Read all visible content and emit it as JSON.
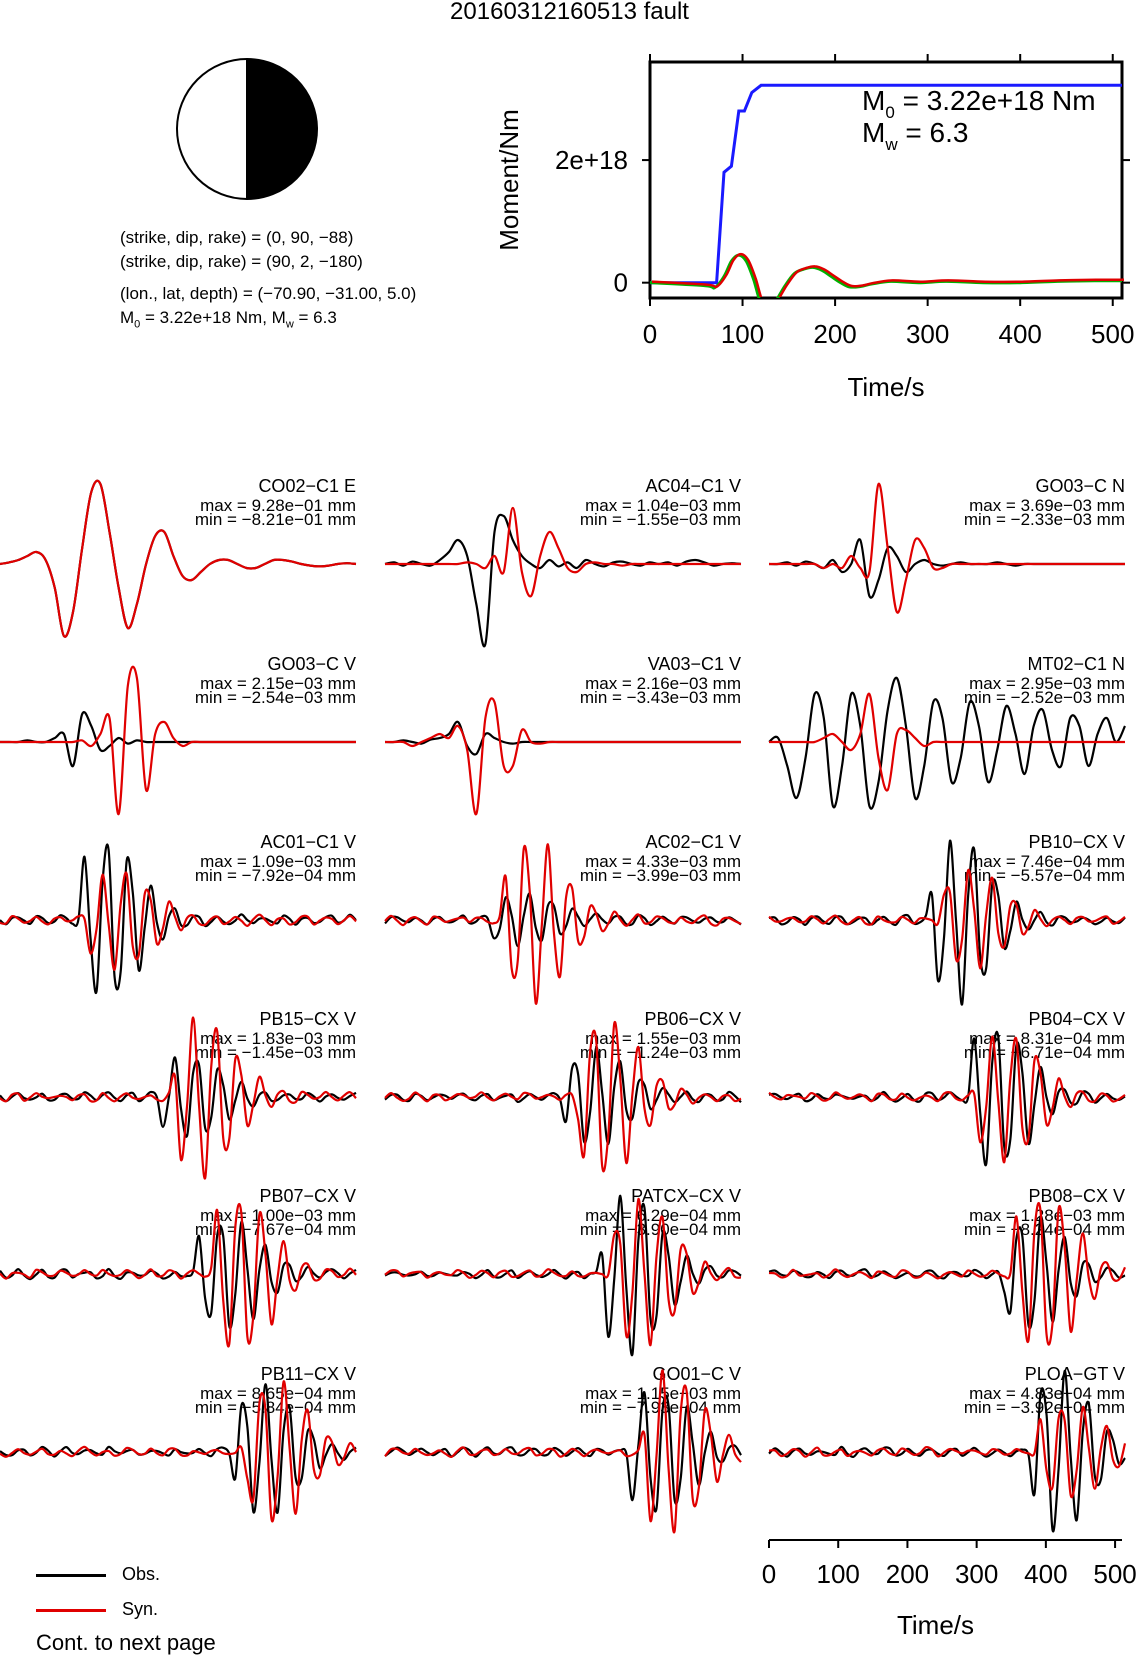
{
  "title": "20160312160513 fault",
  "mechanism": {
    "line1": "(strike, dip, rake) = (0, 90, −88)",
    "line2": "(strike, dip, rake) = (90, 2, −180)",
    "line3": "(lon., lat, depth) = (−70.90, −31.00, 5.0)",
    "line4_m0": "M",
    "line4_m0_sub": "0",
    "line4_m0_val": " = 3.22e+18 Nm, M",
    "line4_mw_sub": "w",
    "line4_mw_val": " = 6.3"
  },
  "colors": {
    "obs": "#000000",
    "syn": "#e00000",
    "moment": "#1a1aff",
    "green": "#00b000"
  },
  "chart_data": [
    {
      "type": "line",
      "id": "moment-rate",
      "xlabel": "Time/s",
      "ylabel": "Moment/Nm",
      "xlim": [
        0,
        510
      ],
      "ylim": [
        -2.5e+17,
        3.6e+18
      ],
      "xticks": [
        "0",
        "100",
        "200",
        "300",
        "400",
        "500"
      ],
      "yticks": [
        {
          "value": 0,
          "label": "0"
        },
        {
          "value": 2e+18,
          "label": "2e+18"
        }
      ],
      "annotation_m0": {
        "sym": "M",
        "sub": "0",
        "val": " = 3.22e+18 Nm"
      },
      "annotation_mw": {
        "sym": "M",
        "sub": "w",
        "val": " = 6.3"
      },
      "series": [
        {
          "x": [
            0,
            72,
            80,
            88,
            96,
            102,
            110,
            120,
            510
          ],
          "y": [
            0,
            0,
            1.8e+18,
            1.9e+18,
            2.8e+18,
            2.8e+18,
            3.1e+18,
            3.22e+18,
            3.22e+18
          ]
        },
        {
          "x": [
            0,
            60,
            70,
            80,
            88,
            96,
            104,
            112,
            120,
            128,
            136,
            146,
            156,
            166,
            176,
            186,
            196,
            206,
            216,
            228,
            240,
            260,
            290,
            320,
            360,
            400,
            440,
            480,
            510
          ],
          "y": [
            0,
            -5e+16,
            -8e+16,
            1e+17,
            3.5e+17,
            4.5e+17,
            3.5e+17,
            5e+16,
            -3.5e+17,
            -4.5e+17,
            -3e+17,
            -5e+16,
            1.5e+17,
            2.2e+17,
            2.5e+17,
            2e+17,
            1e+17,
            0.0,
            -7e+16,
            -6e+16,
            -2e+16,
            2e+16,
            0.0,
            2e+16,
            0.0,
            0.0,
            2e+16,
            3e+16,
            3e+16
          ]
        }
      ]
    },
    {
      "type": "line",
      "id": "waveforms",
      "xlabel": "Time/s",
      "xlim": [
        0,
        510
      ],
      "xticks": [
        "0",
        "100",
        "200",
        "300",
        "400",
        "500"
      ],
      "legend": {
        "obs": "Obs.",
        "syn": "Syn."
      },
      "stations": [
        {
          "name": "CO02−C1 E",
          "max": "max = 9.28e−01 mm",
          "min": "min = −8.21e−01 mm",
          "obs": [
            0,
            0.02,
            0.05,
            0.1,
            0.15,
            0.05,
            -0.3,
            -0.9,
            -0.6,
            0.2,
            0.9,
            1.0,
            0.4,
            -0.3,
            -0.8,
            -0.5,
            0.0,
            0.35,
            0.4,
            0.1,
            -0.15,
            -0.2,
            -0.1,
            0.0,
            0.05,
            0.05,
            0.0,
            -0.05,
            -0.05,
            0.0,
            0.05,
            0.05,
            0.03,
            0.0,
            -0.02,
            -0.03,
            -0.02,
            0.0,
            0.01,
            0.0
          ],
          "syn": [
            0,
            0.02,
            0.05,
            0.1,
            0.15,
            0.05,
            -0.3,
            -0.9,
            -0.6,
            0.2,
            0.9,
            1.0,
            0.4,
            -0.3,
            -0.8,
            -0.5,
            0.0,
            0.35,
            0.4,
            0.1,
            -0.15,
            -0.2,
            -0.1,
            0.0,
            0.05,
            0.05,
            0.0,
            -0.05,
            -0.05,
            0.0,
            0.05,
            0.05,
            0.03,
            0.0,
            -0.02,
            -0.03,
            -0.02,
            0.0,
            0.01,
            0.0
          ]
        },
        {
          "name": "AC04−C1 V",
          "max": "max = 1.04e−03 mm",
          "min": "min = −1.55e−03 mm",
          "obs": [
            0,
            0.02,
            -0.02,
            0.03,
            0.0,
            -0.02,
            0.05,
            0.15,
            0.3,
            0.1,
            -0.5,
            -1.0,
            0.4,
            0.6,
            0.3,
            0.1,
            0.0,
            -0.05,
            0.05,
            -0.03,
            0.02,
            -0.05,
            0.05,
            0.0,
            -0.03,
            0.02,
            0.03,
            0.0,
            -0.02,
            0.02,
            0.0,
            0.02,
            -0.02,
            0.03,
            0.05,
            0.02,
            -0.02,
            0.0,
            0.01,
            0.0
          ],
          "syn": [
            0,
            0.0,
            0.0,
            0.0,
            0.0,
            0.0,
            0.0,
            0.0,
            0.0,
            0.02,
            0.0,
            -0.05,
            0.1,
            -0.1,
            0.7,
            -0.1,
            -0.4,
            0.1,
            0.4,
            0.2,
            -0.05,
            -0.1,
            0.0,
            0.02,
            0.0,
            0.0,
            -0.02,
            0.0,
            0.0,
            0.0,
            0.0,
            0.0,
            0.0,
            0.0,
            0.0,
            0.0,
            0.0,
            0.0,
            0.0,
            0.0
          ]
        },
        {
          "name": "GO03−C N",
          "max": "max = 3.69e−03 mm",
          "min": "min = −2.33e−03 mm",
          "obs": [
            0,
            0.0,
            0.02,
            -0.02,
            0.03,
            0.0,
            -0.05,
            0.05,
            -0.1,
            0.0,
            0.3,
            -0.4,
            -0.2,
            0.2,
            0.1,
            -0.1,
            0.0,
            0.05,
            0.0,
            -0.02,
            0.0,
            0.02,
            0.0,
            0.0,
            0.0,
            0.02,
            0.0,
            -0.02,
            0.0,
            0.0,
            0.0,
            0.0,
            0.0,
            0.0,
            0.0,
            0.0,
            0.0,
            0.0,
            0.0,
            0.0
          ],
          "syn": [
            0,
            0.0,
            0.0,
            0.0,
            0.0,
            0.0,
            -0.05,
            0.0,
            -0.05,
            0.1,
            -0.05,
            -0.1,
            1.0,
            0.2,
            -0.6,
            -0.2,
            0.3,
            0.2,
            -0.05,
            -0.05,
            0.0,
            0.0,
            0.0,
            0.0,
            0.0,
            0.0,
            0.0,
            0.0,
            0.0,
            0.0,
            0.0,
            0.0,
            0.0,
            0.0,
            0.0,
            0.0,
            0.0,
            0.0,
            0.0,
            0.0
          ]
        },
        {
          "name": "GO03−C V",
          "max": "max = 2.15e−03 mm",
          "min": "min = −2.54e−03 mm",
          "obs": [
            0,
            0.0,
            0.0,
            0.02,
            0.0,
            0.0,
            0.05,
            0.1,
            -0.3,
            0.35,
            0.2,
            -0.1,
            -0.05,
            0.05,
            -0.02,
            0.02,
            0.0,
            0.0,
            0.0,
            0.0,
            0.0,
            0.0,
            0.0,
            0.0,
            0.0,
            0.0,
            0.0,
            0.0,
            0.0,
            0.0,
            0.0,
            0.0,
            0.0,
            0.0,
            0.0,
            0.0,
            0.0,
            0.0,
            0.0,
            0.0
          ],
          "syn": [
            0,
            0.0,
            0.0,
            0.0,
            0.0,
            0.0,
            0.0,
            0.0,
            0.0,
            0.02,
            -0.05,
            0.1,
            0.3,
            -0.9,
            0.7,
            0.8,
            -0.6,
            0.1,
            0.25,
            0.05,
            -0.05,
            0.0,
            0.0,
            0.0,
            0.0,
            0.0,
            0.0,
            0.0,
            0.0,
            0.0,
            0.0,
            0.0,
            0.0,
            0.0,
            0.0,
            0.0,
            0.0,
            0.0,
            0.0,
            0.0
          ]
        },
        {
          "name": "VA03−C1 V",
          "max": "max = 2.16e−03 mm",
          "min": "min = −3.43e−03 mm",
          "obs": [
            0,
            0.0,
            0.02,
            0.0,
            -0.02,
            0.03,
            0.05,
            0.1,
            0.25,
            -0.05,
            -0.15,
            0.1,
            0.05,
            0.0,
            -0.02,
            0.0,
            0.0,
            0.0,
            0.0,
            0.0,
            0.0,
            0.0,
            0.0,
            0.0,
            0.0,
            0.0,
            0.0,
            0.0,
            0.0,
            0.0,
            0.0,
            0.0,
            0.0,
            0.0,
            0.0,
            0.0,
            0.0,
            0.0,
            0.0,
            0.0
          ],
          "syn": [
            0,
            0.0,
            0.0,
            -0.05,
            0.0,
            0.05,
            0.1,
            0.05,
            0.2,
            -0.1,
            -0.9,
            0.3,
            0.5,
            -0.3,
            -0.3,
            0.15,
            0.0,
            -0.02,
            0.0,
            0.0,
            0.0,
            0.0,
            0.0,
            0.0,
            0.0,
            0.0,
            0.0,
            0.0,
            0.0,
            0.0,
            0.0,
            0.0,
            0.0,
            0.0,
            0.0,
            0.0,
            0.0,
            0.0,
            0.0,
            0.0
          ]
        },
        {
          "name": "MT02−C1 N",
          "max": "max = 2.95e−03 mm",
          "min": "min = −2.52e−03 mm",
          "obs": [
            0,
            0.05,
            -0.3,
            -0.7,
            -0.2,
            0.6,
            0.3,
            -0.8,
            -0.3,
            0.6,
            0.2,
            -0.8,
            -0.5,
            0.4,
            0.8,
            0.2,
            -0.7,
            -0.3,
            0.5,
            0.3,
            -0.5,
            -0.2,
            0.5,
            0.2,
            -0.5,
            -0.1,
            0.45,
            0.1,
            -0.4,
            0.2,
            0.4,
            -0.1,
            -0.3,
            0.3,
            0.2,
            -0.3,
            0.1,
            0.3,
            0.0,
            0.2
          ],
          "syn": [
            0,
            0.0,
            0.0,
            0.0,
            0.0,
            0.0,
            0.05,
            0.1,
            0.0,
            -0.1,
            0.1,
            0.6,
            -0.2,
            -0.6,
            0.1,
            0.15,
            0.05,
            -0.05,
            0.0,
            0.0,
            0.0,
            0.0,
            0.0,
            0.0,
            0.0,
            0.0,
            0.0,
            0.0,
            0.0,
            0.0,
            0.0,
            0.0,
            0.0,
            0.0,
            0.0,
            0.0,
            0.0,
            0.0,
            0.0,
            0.0
          ]
        }
      ]
    }
  ]
}
